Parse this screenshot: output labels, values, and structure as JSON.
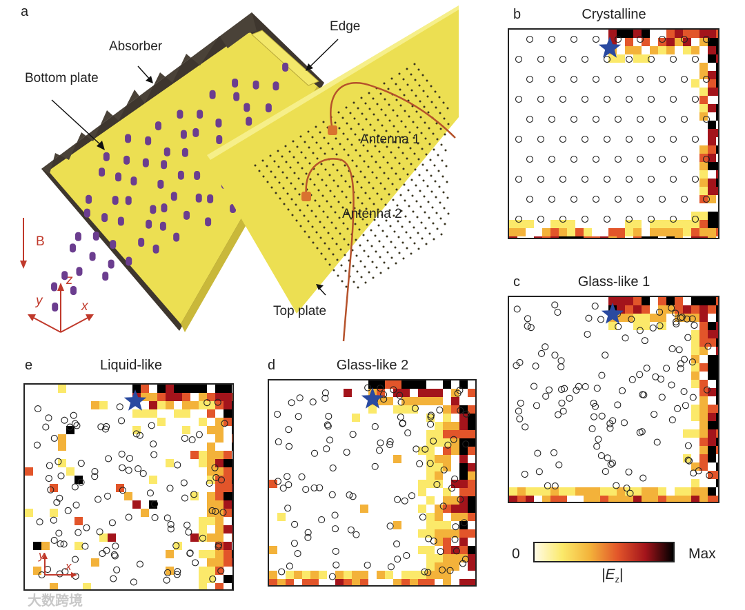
{
  "panels": {
    "a": {
      "letter": "a",
      "labels": {
        "bottom_plate": "Bottom plate",
        "absorber": "Absorber",
        "edge": "Edge",
        "antenna1": "Antenna 1",
        "antenna2": "Antenna 2",
        "top_plate": "Top plate",
        "b_field": "B",
        "axis_x": "x",
        "axis_y": "y",
        "axis_z": "z"
      }
    },
    "b": {
      "letter": "b",
      "title": "Crystalline"
    },
    "c": {
      "letter": "c",
      "title": "Glass-like 1"
    },
    "d": {
      "letter": "d",
      "title": "Glass-like 2"
    },
    "e": {
      "letter": "e",
      "title": "Liquid-like",
      "axis_x": "x",
      "axis_y": "y"
    }
  },
  "colorbar": {
    "min_label": "0",
    "max_label": "Max",
    "quantity": "|E",
    "quantity_sub": "z",
    "quantity_close": "|",
    "colors": [
      "#fffbe6",
      "#fbe96a",
      "#f3b23a",
      "#e2552a",
      "#a3141b",
      "#000000"
    ]
  },
  "colors": {
    "accent_red": "#c0392b",
    "star_blue": "#2a4aa0",
    "plate_yellow": "#ecdf52",
    "rod_purple": "#6b3d8f",
    "absorber_dark": "#4a4238"
  },
  "watermark": "大数跨境"
}
